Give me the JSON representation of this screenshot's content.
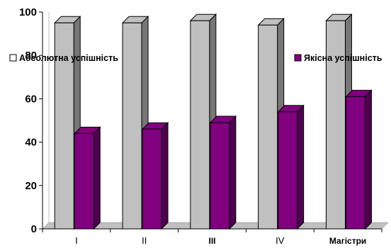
{
  "chart_data": {
    "type": "bar",
    "categories": [
      "I",
      "II",
      "III",
      "IV",
      "Магістри"
    ],
    "series": [
      {
        "name": "Абсолютна успішність",
        "values": [
          95,
          95,
          96,
          94,
          96
        ],
        "color": "#c0c0c0",
        "marker": "□"
      },
      {
        "name": "Якісна успішність",
        "values": [
          44,
          46,
          49,
          54,
          61
        ],
        "color": "#800080",
        "marker": "■"
      }
    ],
    "ylim": [
      0,
      100
    ],
    "yticks": [
      0,
      20,
      40,
      60,
      80,
      100
    ],
    "grid": false,
    "legend_placement": "top"
  }
}
